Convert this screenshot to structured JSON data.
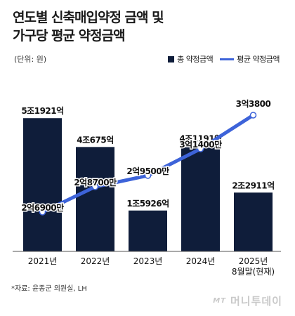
{
  "title_line1": "연도별 신축매입약정 금액 및",
  "title_line2": "가구당 평균 약정금액",
  "unit": "(단위: 원)",
  "legend": {
    "bar": "총 약정금액",
    "line": "평균 약정금액"
  },
  "source": "*자료: 윤종군 의원실, LH",
  "watermark": {
    "logo": "MT",
    "name": "머니투데이"
  },
  "colors": {
    "bar": "#0f1d3a",
    "line": "#3d63d9"
  },
  "chart_data": {
    "type": "bar",
    "categories": [
      "2021년",
      "2022년",
      "2023년",
      "2024년",
      "2025년"
    ],
    "category_sublabels": [
      "",
      "",
      "",
      "",
      "8월말(현재)"
    ],
    "series": [
      {
        "name": "총 약정금액",
        "type": "bar",
        "unit": "조원",
        "values": [
          5.1921,
          4.0675,
          1.5926,
          4.1191,
          2.2911
        ],
        "labels": [
          "5조1921억",
          "4조675억",
          "1조5926억",
          "4조1191억",
          "2조2911억"
        ]
      },
      {
        "name": "평균 약정금액",
        "type": "line",
        "unit": "억원",
        "values": [
          2.69,
          2.87,
          2.95,
          3.14,
          3.38
        ],
        "labels": [
          "2억6900만",
          "2억8700만",
          "2억9500만",
          "3억1400만",
          "3억3800"
        ]
      }
    ],
    "ylim": [
      0,
      6
    ],
    "y2lim": [
      2.3,
      3.5
    ],
    "grid": false
  }
}
